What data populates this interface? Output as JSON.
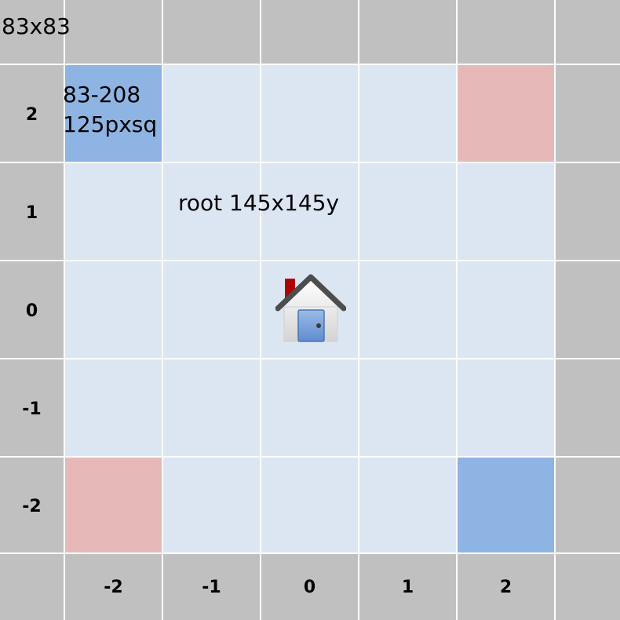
{
  "corner_label": "83x83",
  "cell_annotation": {
    "line1": "83-208",
    "line2": "125pxsq"
  },
  "root_label": "root 145x145y",
  "row_labels": [
    "2",
    "1",
    "0",
    "-1",
    "-2"
  ],
  "col_labels": [
    "-2",
    "-1",
    "0",
    "1",
    "2"
  ],
  "icon": "home-icon",
  "colors": {
    "header": "#c0c0c0",
    "cell": "#dce6f2",
    "blue": "#8eb4e3",
    "pink": "#e6b9b8",
    "grid_line": "#ffffff"
  },
  "highlighted_cells": [
    {
      "col": "-2",
      "row": "2",
      "color": "blue"
    },
    {
      "col": "2",
      "row": "2",
      "color": "pink"
    },
    {
      "col": "-2",
      "row": "-2",
      "color": "pink"
    },
    {
      "col": "2",
      "row": "-2",
      "color": "blue"
    }
  ]
}
